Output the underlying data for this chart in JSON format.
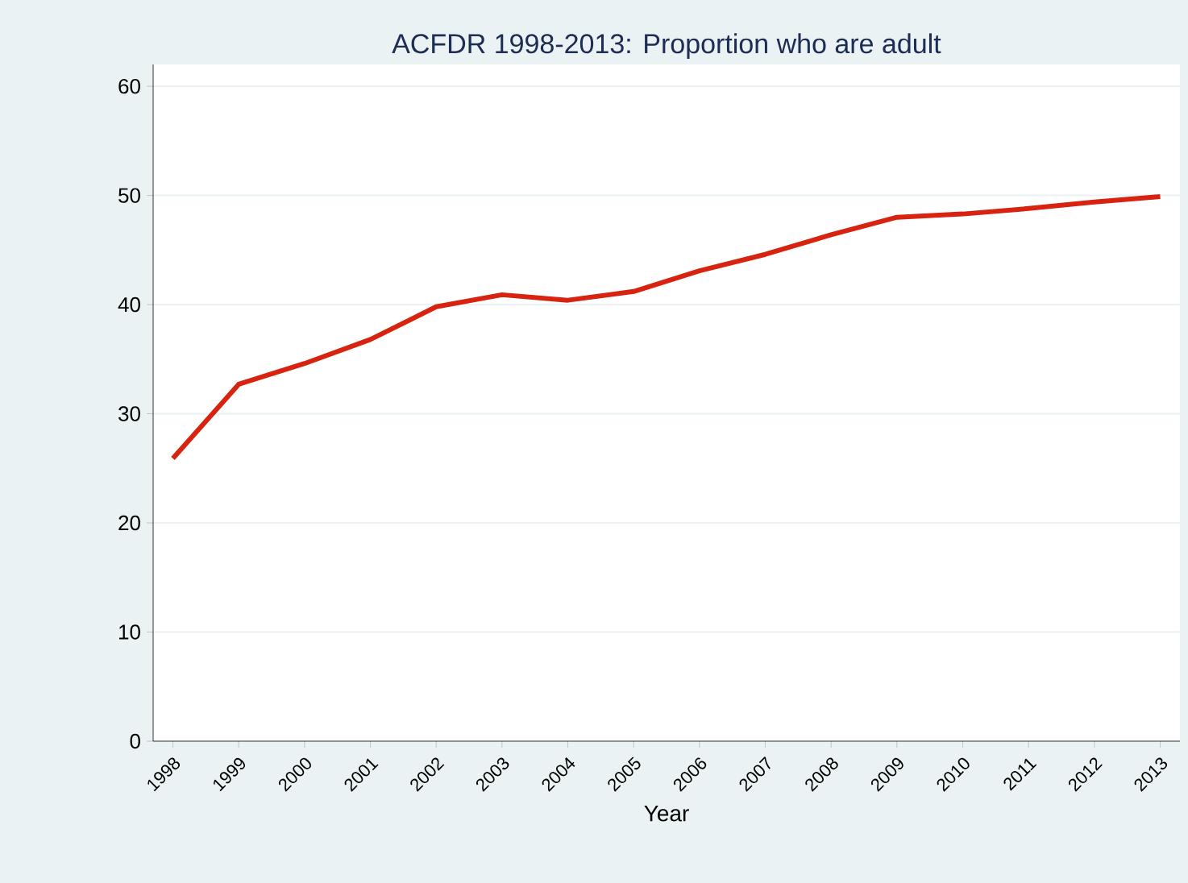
{
  "chart_data": {
    "type": "line",
    "title": "ACFDR 1998-2013: Proportion who are adult",
    "xlabel": "Year",
    "categories": [
      "1998",
      "1999",
      "2000",
      "2001",
      "2002",
      "2003",
      "2004",
      "2005",
      "2006",
      "2007",
      "2008",
      "2009",
      "2010",
      "2011",
      "2012",
      "2013"
    ],
    "series": [
      {
        "color": "#d7230f",
        "values": [
          25.9,
          32.7,
          34.6,
          36.8,
          39.8,
          40.9,
          40.4,
          41.2,
          43.1,
          44.6,
          46.4,
          48.0,
          48.3,
          48.8,
          49.4,
          49.9
        ]
      }
    ],
    "ylim": [
      0,
      62
    ],
    "yticks": [
      0,
      10,
      20,
      30,
      40,
      50,
      60
    ],
    "grid": "y",
    "marker": "none",
    "line_style": "solid"
  }
}
